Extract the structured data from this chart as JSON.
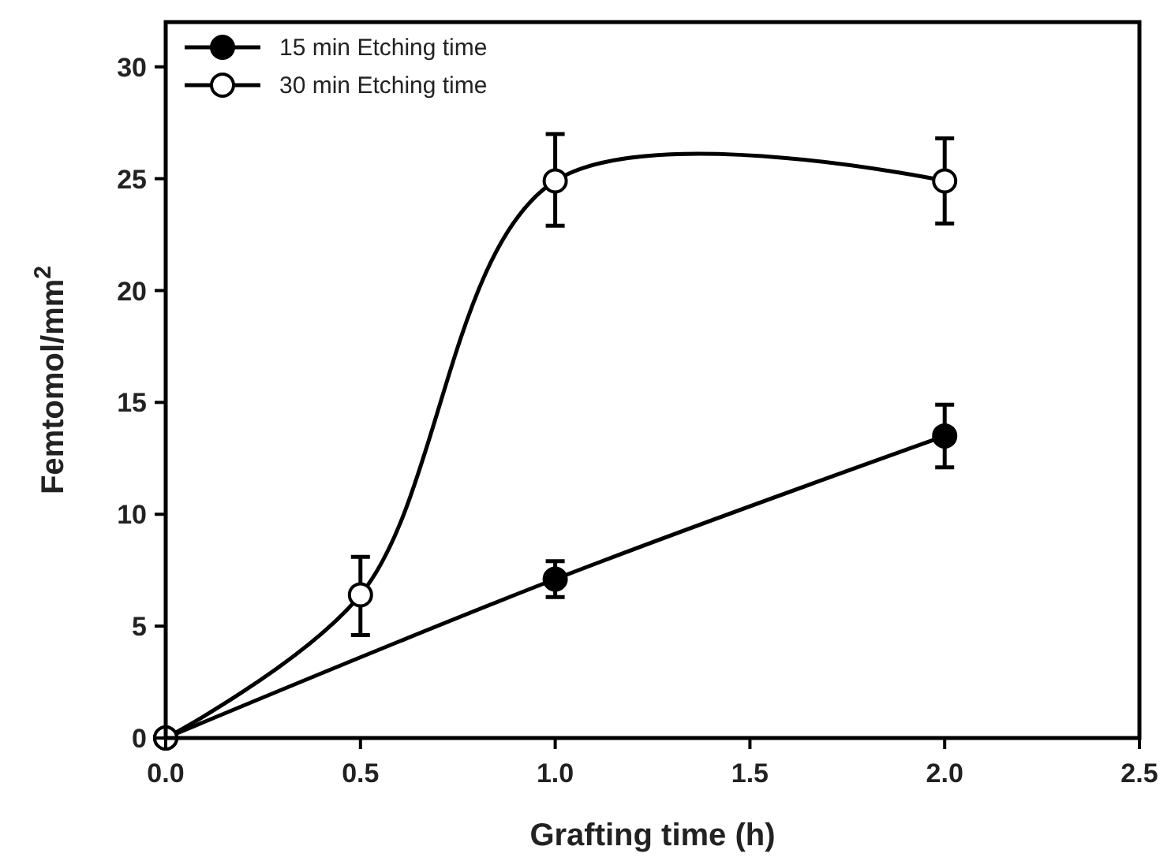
{
  "chart_data": {
    "type": "line",
    "xlabel": "Grafting time (h)",
    "ylabel": "Femtomol/mm$^{2}$",
    "xlim": [
      0,
      2.5
    ],
    "xticks": [
      {
        "value": 0,
        "label": "0.0"
      },
      {
        "value": 0.5,
        "label": "0.5"
      },
      {
        "value": 1,
        "label": "1.0"
      },
      {
        "value": 1.5,
        "label": "1.5"
      },
      {
        "value": 2,
        "label": "2.0"
      },
      {
        "value": 2.5,
        "label": "2.5"
      }
    ],
    "ylim": [
      0,
      32
    ],
    "yticks": [
      0,
      5,
      10,
      15,
      20,
      25,
      30
    ],
    "grid": false,
    "legend": "top left",
    "marker": "circle",
    "line_style": "solid",
    "series": [
      {
        "name": "15 min Etching time",
        "color": "#000000",
        "x": [
          0,
          1,
          2
        ],
        "values": [
          0,
          7.1,
          13.5
        ],
        "errors": [
          null,
          [
            6.3,
            7.9
          ],
          [
            12.1,
            14.9
          ]
        ]
      },
      {
        "name": "30 min Etching time",
        "color": "#ffffff",
        "x": [
          0,
          0.5,
          1,
          2
        ],
        "values": [
          0,
          6.4,
          24.9,
          24.9
        ],
        "errors": [
          null,
          [
            4.6,
            8.1
          ],
          [
            22.9,
            27
          ],
          [
            23,
            26.8
          ]
        ]
      }
    ]
  }
}
